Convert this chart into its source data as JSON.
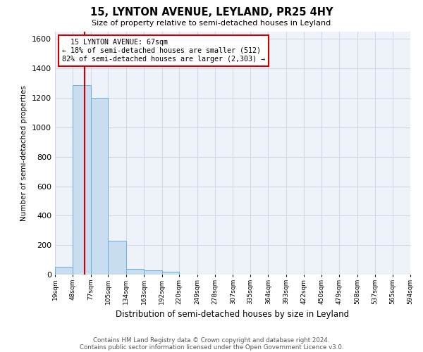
{
  "title": "15, LYNTON AVENUE, LEYLAND, PR25 4HY",
  "subtitle": "Size of property relative to semi-detached houses in Leyland",
  "xlabel": "Distribution of semi-detached houses by size in Leyland",
  "ylabel": "Number of semi-detached properties",
  "footnote1": "Contains HM Land Registry data © Crown copyright and database right 2024.",
  "footnote2": "Contains public sector information licensed under the Open Government Licence v3.0.",
  "property_size": 67,
  "property_label": "15 LYNTON AVENUE: 67sqm",
  "pct_smaller": 18,
  "count_smaller": 512,
  "pct_larger": 82,
  "count_larger": 2303,
  "bin_edges": [
    19,
    48,
    77,
    105,
    134,
    163,
    192,
    220,
    249,
    278,
    307,
    335,
    364,
    393,
    422,
    450,
    479,
    508,
    537,
    565,
    594
  ],
  "bar_heights": [
    55,
    1285,
    1200,
    230,
    40,
    30,
    20,
    0,
    0,
    0,
    0,
    0,
    0,
    0,
    0,
    0,
    0,
    0,
    0,
    0
  ],
  "bar_color": "#c9ddf0",
  "bar_edge_color": "#6aaed6",
  "grid_color": "#d0d8e8",
  "highlight_line_color": "#cc0000",
  "annotation_box_color": "#cc0000",
  "ylim": [
    0,
    1650
  ],
  "yticks": [
    0,
    200,
    400,
    600,
    800,
    1000,
    1200,
    1400,
    1600
  ],
  "background_color": "#eef2f9"
}
